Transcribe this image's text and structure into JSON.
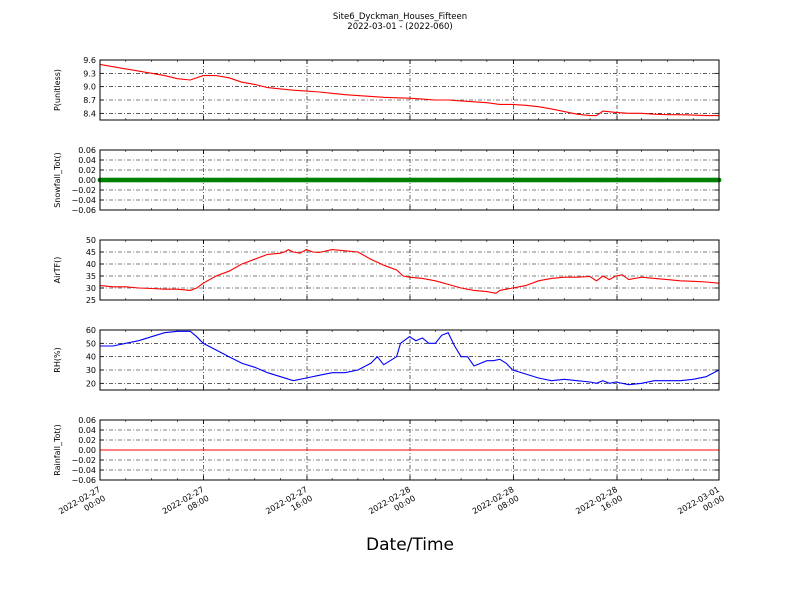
{
  "figure": {
    "title_line1": "Site6_Dyckman_Houses_Fifteen",
    "title_line2": "2022-03-01 - (2022-060)",
    "xlabel": "Date/Time"
  },
  "colors": {
    "red": "#ff0000",
    "green": "#008000",
    "blue": "#0000ff",
    "grid": "#000000"
  },
  "chart_data": [
    {
      "type": "line",
      "name": "pressure",
      "ylabel": "P(unitless)",
      "ylim": [
        8.25,
        9.6
      ],
      "yticks": [
        9.6,
        9.3,
        9.0,
        8.7,
        8.4
      ],
      "yticklabels": [
        "9.6",
        "9.3",
        "9.0",
        "8.7",
        "8.4"
      ],
      "xlim": [
        0,
        48
      ],
      "color": "#ff0000",
      "x": [
        0,
        1,
        2,
        3,
        4,
        5,
        6,
        7,
        8,
        9,
        10,
        11,
        12,
        13,
        14,
        15,
        16,
        17,
        18,
        19,
        20,
        21,
        22,
        23,
        24,
        25,
        26,
        27,
        28,
        29,
        30,
        31,
        32,
        33,
        34,
        35,
        36,
        37,
        38,
        38.5,
        39,
        40,
        41,
        42,
        43,
        44,
        45,
        46,
        47,
        48
      ],
      "y": [
        9.5,
        9.45,
        9.4,
        9.35,
        9.3,
        9.25,
        9.18,
        9.15,
        9.25,
        9.25,
        9.2,
        9.1,
        9.05,
        8.98,
        8.95,
        8.92,
        8.9,
        8.88,
        8.85,
        8.82,
        8.8,
        8.78,
        8.76,
        8.75,
        8.74,
        8.72,
        8.7,
        8.7,
        8.68,
        8.66,
        8.64,
        8.6,
        8.6,
        8.58,
        8.55,
        8.5,
        8.44,
        8.38,
        8.35,
        8.35,
        8.45,
        8.42,
        8.4,
        8.4,
        8.38,
        8.37,
        8.37,
        8.36,
        8.35,
        8.35
      ]
    },
    {
      "type": "line",
      "name": "snowfall",
      "ylabel": "Snowfall_Tot()",
      "ylim": [
        -0.06,
        0.06
      ],
      "yticks": [
        0.06,
        0.04,
        0.02,
        0.0,
        -0.02,
        -0.04,
        -0.06
      ],
      "yticklabels": [
        "0.06",
        "0.04",
        "0.02",
        "0.00",
        "−0.02",
        "−0.04",
        "−0.06"
      ],
      "xlim": [
        0,
        48
      ],
      "color": "#008000",
      "markers": true,
      "x": [
        0,
        48
      ],
      "y": [
        0,
        0
      ]
    },
    {
      "type": "line",
      "name": "air-temperature",
      "ylabel": "AirTF()",
      "ylim": [
        25,
        50
      ],
      "yticks": [
        50,
        45,
        40,
        35,
        30,
        25
      ],
      "yticklabels": [
        "50",
        "45",
        "40",
        "35",
        "30",
        "25"
      ],
      "xlim": [
        0,
        48
      ],
      "color": "#ff0000",
      "x": [
        0,
        1,
        2,
        3,
        4,
        5,
        6,
        7,
        7.5,
        8,
        9,
        10,
        11,
        12,
        13,
        14,
        14.3,
        14.6,
        15,
        15.5,
        16,
        16.5,
        17,
        18,
        19,
        20,
        21,
        22,
        23,
        23.5,
        24,
        25,
        26,
        27,
        28,
        29,
        30,
        30.7,
        31,
        32,
        33,
        34,
        35,
        36,
        37,
        38,
        38.5,
        39,
        39.5,
        40,
        40.5,
        41,
        42,
        43,
        44,
        45,
        46,
        47,
        48
      ],
      "y": [
        31,
        30.5,
        30.5,
        30,
        29.8,
        29.5,
        29.5,
        29,
        30,
        32,
        35,
        37,
        40,
        42,
        44,
        44.5,
        45,
        46,
        45,
        44.5,
        46,
        45,
        44.8,
        46,
        45.5,
        45,
        42,
        39.5,
        37.5,
        35,
        34.5,
        34,
        33,
        31.5,
        30,
        29,
        28.5,
        27.8,
        29,
        30,
        31,
        33,
        34,
        34.5,
        34.5,
        34.8,
        33,
        35,
        33.5,
        35,
        35.5,
        33.5,
        34.5,
        34,
        33.5,
        33,
        32.8,
        32.5,
        32
      ]
    },
    {
      "type": "line",
      "name": "relative-humidity",
      "ylabel": "RH(%)",
      "ylim": [
        15,
        60
      ],
      "yticks": [
        60,
        50,
        40,
        30,
        20
      ],
      "yticklabels": [
        "60",
        "50",
        "40",
        "30",
        "20"
      ],
      "xlim": [
        0,
        48
      ],
      "color": "#0000ff",
      "x": [
        0,
        1,
        2,
        3,
        4,
        5,
        6,
        7,
        7.5,
        8,
        9,
        10,
        11,
        12,
        13,
        14,
        15,
        16,
        17,
        18,
        19,
        20,
        21,
        21.5,
        22,
        22.5,
        23,
        23.3,
        24,
        24.5,
        25,
        25.5,
        26,
        26.5,
        27,
        27.5,
        28,
        28.5,
        29,
        30,
        30.5,
        31,
        31.5,
        32,
        33,
        34,
        35,
        36,
        37,
        38,
        38.5,
        39,
        39.5,
        40,
        41,
        42,
        43,
        44,
        45,
        46,
        47,
        48
      ],
      "y": [
        48,
        48,
        50,
        52,
        55,
        58,
        59,
        59,
        55,
        50,
        45,
        40,
        35,
        32,
        28,
        25,
        22,
        24,
        26,
        28,
        28,
        30,
        35,
        40,
        34,
        37,
        40,
        50,
        55,
        52,
        54,
        50,
        50,
        56,
        58,
        48,
        40,
        40,
        33,
        37,
        37,
        38,
        35,
        30,
        27,
        24,
        22,
        23,
        22,
        21,
        20,
        22,
        20,
        21,
        19,
        20,
        22,
        22,
        22,
        23,
        25,
        30
      ]
    },
    {
      "type": "line",
      "name": "rainfall",
      "ylabel": "Rainfall_Tot()",
      "ylim": [
        -0.06,
        0.06
      ],
      "yticks": [
        0.06,
        0.04,
        0.02,
        0.0,
        -0.02,
        -0.04,
        -0.06
      ],
      "yticklabels": [
        "0.06",
        "0.04",
        "0.02",
        "0.00",
        "−0.02",
        "−0.04",
        "−0.06"
      ],
      "xlim": [
        0,
        48
      ],
      "color": "#ff0000",
      "x": [
        0,
        48
      ],
      "y": [
        0,
        0
      ]
    }
  ],
  "x_ticks": [
    {
      "line1": "2022-02-27",
      "line2": "00:00"
    },
    {
      "line1": "2022-02-27",
      "line2": "08:00"
    },
    {
      "line1": "2022-02-27",
      "line2": "16:00"
    },
    {
      "line1": "2022-02-28",
      "line2": "00:00"
    },
    {
      "line1": "2022-02-28",
      "line2": "08:00"
    },
    {
      "line1": "2022-02-28",
      "line2": "16:00"
    },
    {
      "line1": "2022-03-01",
      "line2": "00:00"
    }
  ]
}
